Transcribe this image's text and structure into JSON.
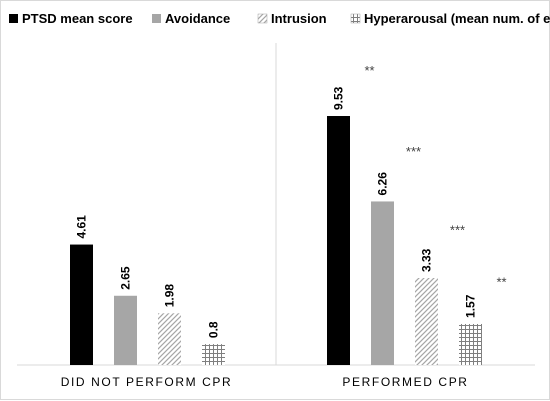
{
  "chart_data": {
    "type": "bar",
    "title": "",
    "xlabel": "",
    "ylabel": "",
    "categories": [
      "DID NOT PERFORM CPR",
      "PERFORMED CPR"
    ],
    "series": [
      {
        "name": "PTSD mean score",
        "values": [
          4.61,
          9.53
        ],
        "labels": [
          "4.61",
          "9.53"
        ],
        "fill": "solid",
        "color": "#000000"
      },
      {
        "name": "Avoidance",
        "values": [
          2.65,
          6.26
        ],
        "labels": [
          "2.65",
          "6.26"
        ],
        "fill": "solid",
        "color": "#a6a6a6"
      },
      {
        "name": "Intrusion",
        "values": [
          1.98,
          3.33
        ],
        "labels": [
          "1.98",
          "3.33"
        ],
        "fill": "diagonal-hatch",
        "color": "#a6a6a6"
      },
      {
        "name": "Hyperarousal (mean num. of effects)",
        "values": [
          0.8,
          1.57
        ],
        "labels": [
          "0.8",
          "1.57"
        ],
        "fill": "grid-hatch",
        "color": "#7f7f7f"
      }
    ],
    "ylim": [
      0,
      12
    ],
    "grid": false,
    "legend_position": "top",
    "annotations": [
      {
        "text": "**",
        "category": "PERFORMED CPR",
        "series": "PTSD mean score",
        "level": 11.1
      },
      {
        "text": "***",
        "category": "PERFORMED CPR",
        "series": "Avoidance",
        "level": 8.0
      },
      {
        "text": "***",
        "category": "PERFORMED CPR",
        "series": "Intrusion",
        "level": 5.0
      },
      {
        "text": "**",
        "category": "PERFORMED CPR",
        "series": "Hyperarousal (mean num. of effects)",
        "level": 3.0
      }
    ]
  }
}
